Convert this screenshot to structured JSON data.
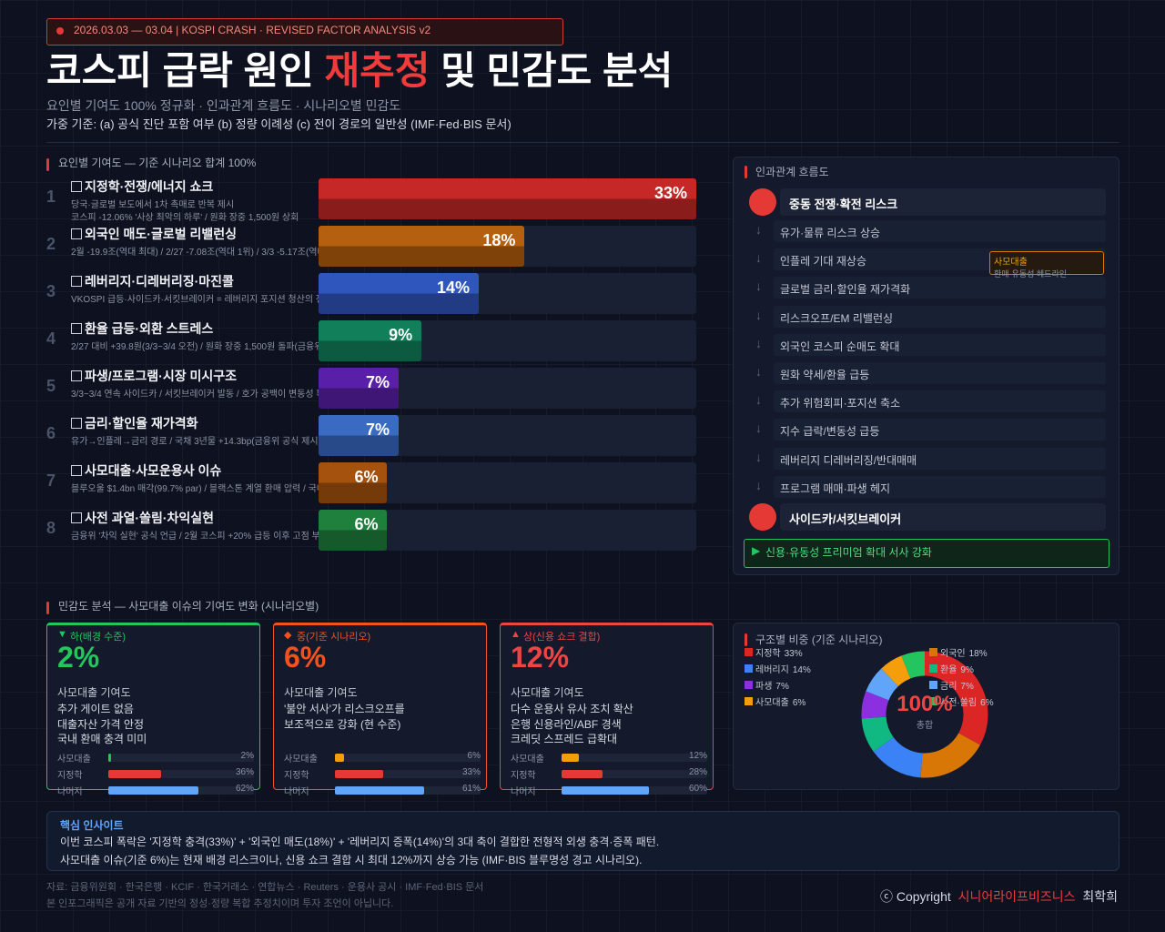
{
  "header": {
    "tag": "2026.03.03 — 03.04 | KOSPI CRASH · REVISED FACTOR ANALYSIS v2",
    "title_start": "코스피 급락 원인",
    "title_highlight": "재추정",
    "title_end": "및 민감도 분석",
    "subtitle": "요인별 기여도 100% 정규화 · 인과관계 흐름도 · 시나리오별 민감도",
    "criteria": "가중 기준: (a) 공식 진단 포함 여부 (b) 정량 이례성 (c) 전이 경로의 일반성 (IMF·Fed·BIS 문서)"
  },
  "factors": {
    "title": "요인별 기여도 — 기준 시나리오 합계 100%",
    "xlim": [
      0,
      33
    ],
    "items": [
      {
        "rank": 1,
        "name": "지정학·전쟁/에너지 쇼크",
        "desc": [
          "당국·글로벌 보도에서 1차 촉매로 반복 제시",
          "코스피 -12.06% '사상 최악의 하루' / 원화 장중 1,500원 상회"
        ],
        "value": 33,
        "value_label": "33%",
        "color": "#c62828"
      },
      {
        "rank": 2,
        "name": "외국인 매도·글로벌 리밸런싱",
        "desc": [
          "2월 -19.9조(역대 최대) / 2/27 -7.08조(역대 1위) / 3/3 -5.17조(역대"
        ],
        "value": 18,
        "value_label": "18%",
        "color": "#b5600f"
      },
      {
        "rank": 3,
        "name": "레버리지·디레버리징·마진콜",
        "desc": [
          "VKOSPI 급등·사이드카·서킷브레이커 = 레버리지 포지션 청산의 전"
        ],
        "value": 14,
        "value_label": "14%",
        "color": "#2f56bd"
      },
      {
        "rank": 4,
        "name": "환율 급등·외환 스트레스",
        "desc": [
          "2/27 대비 +39.8원(3/3~3/4 오전) / 원화 장중 1,500원 돌파(금융위"
        ],
        "value": 9,
        "value_label": "9%",
        "color": "#11805a"
      },
      {
        "rank": 5,
        "name": "파생/프로그램·시장 미시구조",
        "desc": [
          "3/3~3/4 연속 사이드카 / 서킷브레이커 발동 / 호가 공백이 변동성 확"
        ],
        "value": 7,
        "value_label": "7%",
        "color": "#5a1fa8"
      },
      {
        "rank": 6,
        "name": "금리·할인율 재가격화",
        "desc": [
          "유가→인플레→금리 경로 / 국채 3년물 +14.3bp(금융위 공식 제시)"
        ],
        "value": 7,
        "value_label": "7%",
        "color": "#3a6ac2"
      },
      {
        "rank": 7,
        "name": "사모대출·사모운용사 이슈",
        "desc": [
          "블루오울 $1.4bn 매각(99.7% par) / 블랙스톤 계열 환매 압력 / 국내"
        ],
        "value": 6,
        "value_label": "6%",
        "color": "#a5520f"
      },
      {
        "rank": 8,
        "name": "사전 과열·쏠림·차익실현",
        "desc": [
          "금융위 '차익 실현' 공식 언급 / 2월 코스피 +20% 급등 이후 고점 부담"
        ],
        "value": 6,
        "value_label": "6%",
        "color": "#1f7f3c"
      }
    ]
  },
  "flow": {
    "title": "인과관계 흐름도",
    "start": "중동 전쟁·확전 리스크",
    "steps": [
      "유가·물류 리스크 상승",
      "인플레 기대 재상승",
      "글로벌 금리·할인율 재가격화",
      "리스크오프/EM 리밸런싱",
      "외국인 코스피 순매도 확대",
      "원화 약세/환율 급등",
      "추가 위험회피·포지션 축소",
      "지수 급락/변동성 급등",
      "레버리지 디레버리징/반대매매",
      "프로그램 매매·파생 헤지"
    ],
    "end": "사이드카/서킷브레이커",
    "side_note": {
      "title": "사모대출",
      "text": "환매·유동성 헤드라인"
    },
    "conclusion": "신용·유동성 프리미엄 확대 서사 강화"
  },
  "sensitivity": {
    "title": "민감도 분석 — 사모대출 이슈의 기여도 변화 (시나리오별)",
    "xlim": [
      0,
      100
    ],
    "scenarios": [
      {
        "label": "하(배경 수준)",
        "value": 2,
        "value_label": "2%",
        "color": "#22c55e",
        "caption": "사모대출 기여도",
        "lines": [
          "추가 게이트 없음",
          "대출자산 가격 안정",
          "국내 환매 충격 미미"
        ],
        "bars": [
          {
            "name": "사모대출",
            "value": 2,
            "value_label": "2%",
            "color": "#22c55e"
          },
          {
            "name": "지정학",
            "value": 36,
            "value_label": "36%",
            "color": "#e53935"
          },
          {
            "name": "나머지",
            "value": 62,
            "value_label": "62%",
            "color": "#60a5fa"
          }
        ]
      },
      {
        "label": "중(기준 시나리오)",
        "value": 6,
        "value_label": "6%",
        "color": "#f4511e",
        "caption": "사모대출 기여도",
        "lines": [
          "'불안 서사'가 리스크오프를",
          "보조적으로 강화 (현 수준)"
        ],
        "bars": [
          {
            "name": "사모대출",
            "value": 6,
            "value_label": "6%",
            "color": "#f59e0b"
          },
          {
            "name": "지정학",
            "value": 33,
            "value_label": "33%",
            "color": "#e53935"
          },
          {
            "name": "나머지",
            "value": 61,
            "value_label": "61%",
            "color": "#60a5fa"
          }
        ]
      },
      {
        "label": "상(신용 쇼크 결합)",
        "value": 12,
        "value_label": "12%",
        "color": "#ef4444",
        "caption": "사모대출 기여도",
        "lines": [
          "다수 운용사 유사 조치 확산",
          "은행 신용라인/ABF 경색",
          "크레딧 스프레드 급확대"
        ],
        "bars": [
          {
            "name": "사모대출",
            "value": 12,
            "value_label": "12%",
            "color": "#f59e0b"
          },
          {
            "name": "지정학",
            "value": 28,
            "value_label": "28%",
            "color": "#e53935"
          },
          {
            "name": "나머지",
            "value": 60,
            "value_label": "60%",
            "color": "#60a5fa"
          }
        ]
      }
    ]
  },
  "donut": {
    "title": "구조별 비중 (기준 시나리오)",
    "center_label": "100%",
    "center_caption": "총합",
    "segments": [
      {
        "name": "지정학",
        "value": 33,
        "value_label": "33%",
        "color": "#dc2626"
      },
      {
        "name": "외국인",
        "value": 18,
        "value_label": "18%",
        "color": "#d97706"
      },
      {
        "name": "레버리지",
        "value": 14,
        "value_label": "14%",
        "color": "#3b82f6"
      },
      {
        "name": "환율",
        "value": 9,
        "value_label": "9%",
        "color": "#10b981"
      },
      {
        "name": "파생",
        "value": 7,
        "value_label": "7%",
        "color": "#8b2fe0"
      },
      {
        "name": "금리",
        "value": 7,
        "value_label": "7%",
        "color": "#60a5fa"
      },
      {
        "name": "사모대출",
        "value": 6,
        "value_label": "6%",
        "color": "#f59e0b"
      },
      {
        "name": "사전·쏠림",
        "value": 6,
        "value_label": "6%",
        "color": "#22c55e"
      }
    ]
  },
  "insight": {
    "title": "핵심 인사이트",
    "lines": [
      "이번 코스피 폭락은 '지정학 충격(33%)' + '외국인 매도(18%)' + '레버리지 증폭(14%)'의 3대 축이 결합한 전형적 외생 충격·증폭 패턴.",
      "사모대출 이슈(기준 6%)는 현재 배경 리스크이나, 신용 쇼크 결합 시 최대 12%까지 상승 가능 (IMF·BIS 블루명성 경고 시나리오)."
    ]
  },
  "footer": {
    "sources": "자료: 금융위원회 · 한국은행 · KCIF · 한국거래소 · 연합뉴스 · Reuters · 운용사 공시 · IMF·Fed·BIS 문서",
    "disclaimer": "본 인포그래픽은 공개 자료 기반의 정성·정량 복합 추정치이며 투자 조언이 아닙니다.",
    "copyright": "ⓒ Copyright",
    "brand": "시니어라이프비즈니스",
    "author": "최학희"
  }
}
